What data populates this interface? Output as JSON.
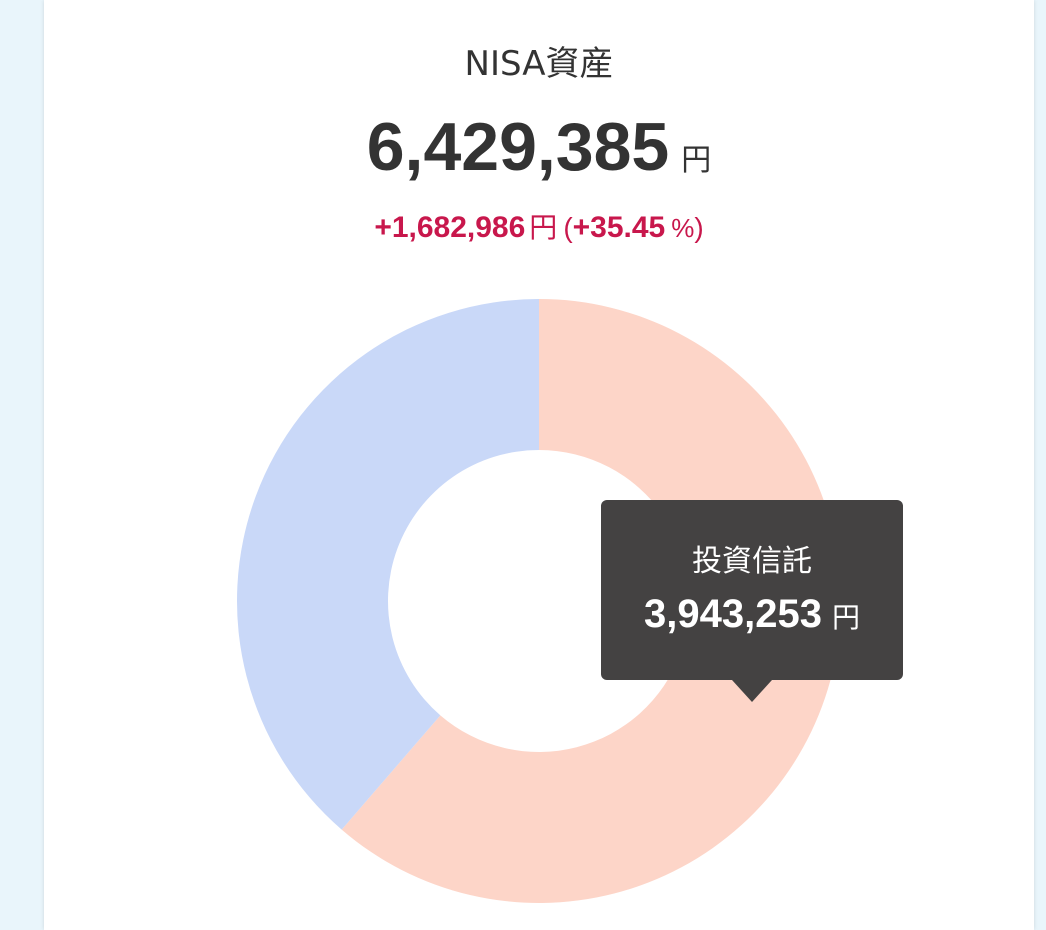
{
  "card": {
    "title": "NISA資産",
    "total_value": "6,429,385",
    "total_unit": "円",
    "gain_value": "+1,682,986",
    "gain_unit": "円",
    "gain_paren_open": "(",
    "gain_pct": "+35.45",
    "gain_pct_unit": "%",
    "gain_paren_close": ")"
  },
  "tooltip": {
    "label": "投資信託",
    "value": "3,943,253",
    "unit": "円"
  },
  "colors": {
    "background": "#e9f5fb",
    "card": "#ffffff",
    "text": "#333333",
    "gain": "#c8174c",
    "tooltip_bg": "#444242",
    "slice_fund": "#fdd5c8",
    "slice_other": "#c9d8f8"
  },
  "chart_data": {
    "type": "pie",
    "donut": true,
    "title": "NISA資産",
    "total": 6429385,
    "series": [
      {
        "values": [
          3943253,
          2486132
        ]
      }
    ],
    "categories": [
      "投資信託",
      ""
    ],
    "highlighted_category": "投資信託",
    "start_angle_deg": 0,
    "direction": "clockwise"
  }
}
